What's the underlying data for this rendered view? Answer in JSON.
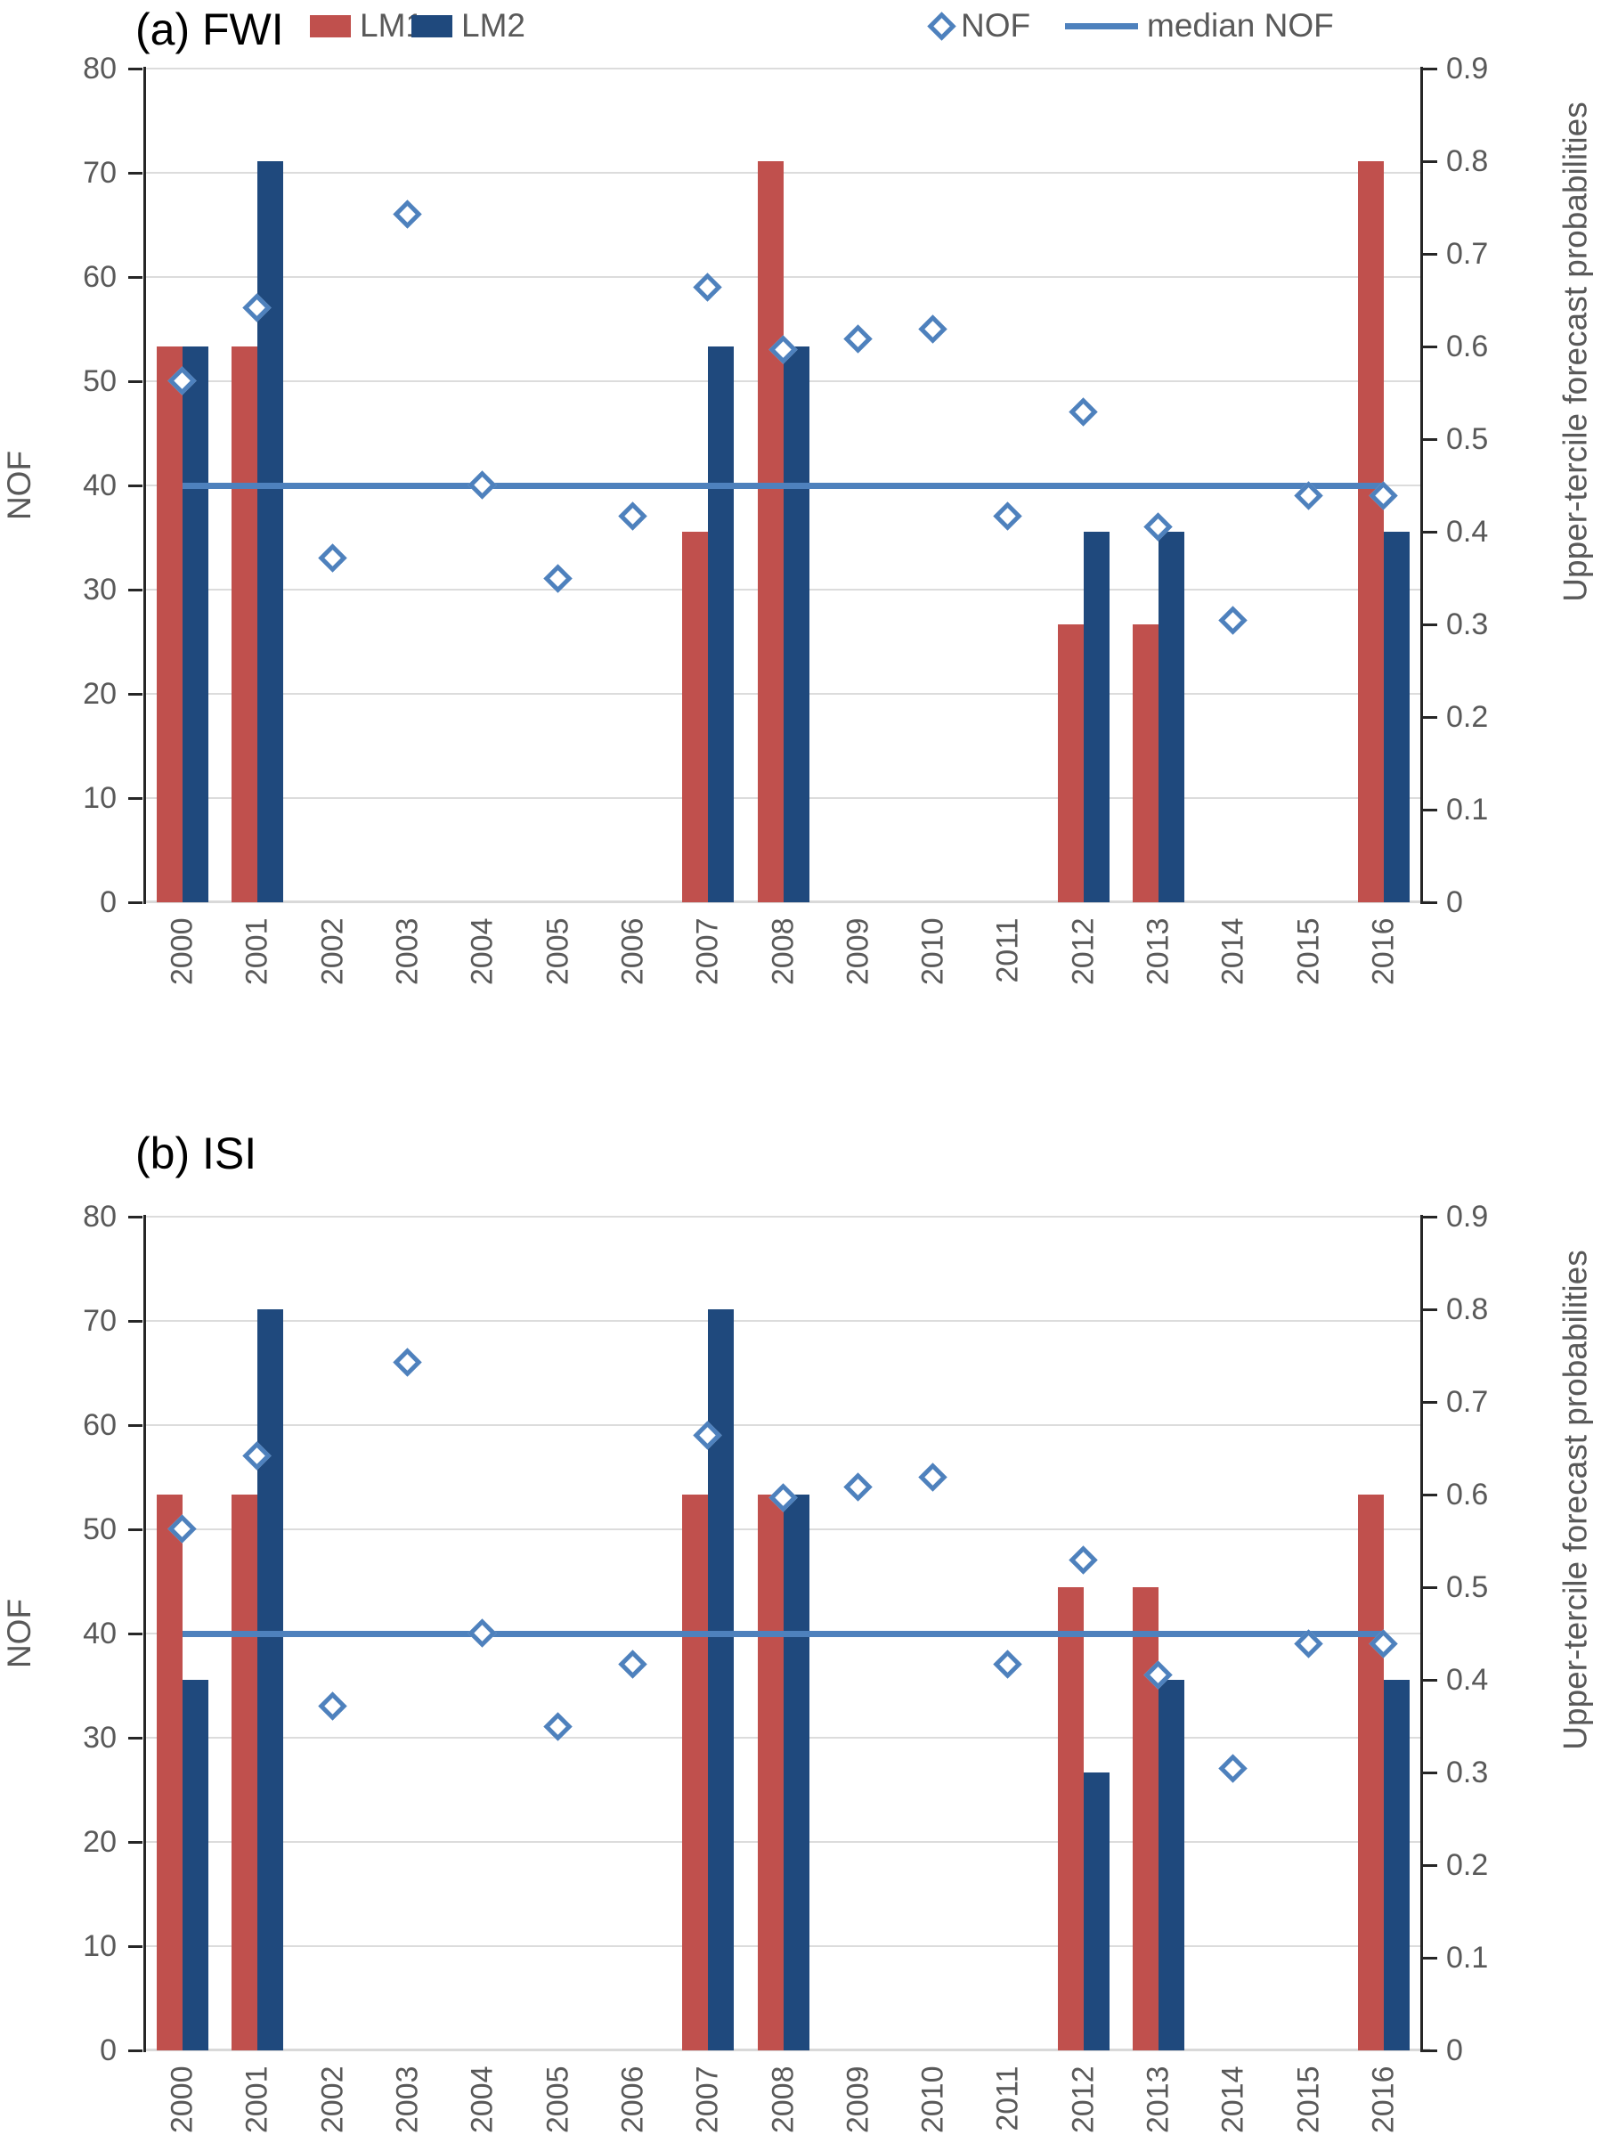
{
  "legend": {
    "items": [
      {
        "label": "LM1",
        "marker": "bar",
        "color": "#C0504D"
      },
      {
        "label": "LM2",
        "marker": "bar",
        "color": "#1F497D"
      },
      {
        "label": "NOF",
        "marker": "diamond",
        "color": "#4E81BD"
      },
      {
        "label": "median NOF",
        "marker": "line",
        "color": "#4E81BD"
      }
    ]
  },
  "colors": {
    "lm1": "#C0504D",
    "lm2": "#1F497D",
    "nof": "#4E81BD",
    "grid": "#DCDCDC",
    "axis": "#262626",
    "tick_text": "#595959",
    "baseline": "#D9D9D9"
  },
  "chart_data": [
    {
      "type": "bar",
      "title": "(a) FWI",
      "categories": [
        "2000",
        "2001",
        "2002",
        "2003",
        "2004",
        "2005",
        "2006",
        "2007",
        "2008",
        "2009",
        "2010",
        "2011",
        "2012",
        "2013",
        "2014",
        "2015",
        "2016"
      ],
      "left_axis": {
        "label": "NOF",
        "min": 0,
        "max": 80,
        "tick_labels": [
          "0",
          "10",
          "20",
          "30",
          "40",
          "50",
          "60",
          "70",
          "80"
        ]
      },
      "right_axis": {
        "label": "Upper-tercile forecast probabilities",
        "min": 0,
        "max": 0.9,
        "tick_labels": [
          "0",
          "0.1",
          "0.2",
          "0.3",
          "0.4",
          "0.5",
          "0.6",
          "0.7",
          "0.8",
          "0.9"
        ]
      },
      "grid": true,
      "legend_position": "top",
      "series": [
        {
          "name": "LM1",
          "type": "bar",
          "axis": "right",
          "color": "#C0504D",
          "values": [
            0.6,
            0.6,
            0,
            0,
            0,
            0,
            0,
            0.4,
            0.8,
            0,
            0,
            0,
            0.3,
            0.3,
            0,
            0,
            0.8
          ]
        },
        {
          "name": "LM2",
          "type": "bar",
          "axis": "right",
          "color": "#1F497D",
          "values": [
            0.6,
            0.8,
            0,
            0,
            0,
            0,
            0,
            0.6,
            0.6,
            0,
            0,
            0,
            0.4,
            0.4,
            0,
            0,
            0.4
          ]
        },
        {
          "name": "NOF",
          "type": "scatter",
          "marker": "diamond",
          "axis": "left",
          "color": "#4E81BD",
          "values": [
            50,
            57,
            33,
            66,
            40,
            31,
            37,
            59,
            53,
            54,
            55,
            37,
            47,
            36,
            27,
            39,
            39
          ]
        },
        {
          "name": "median NOF",
          "type": "line",
          "axis": "left",
          "color": "#4E81BD",
          "value": 40
        }
      ]
    },
    {
      "type": "bar",
      "title": "(b) ISI",
      "categories": [
        "2000",
        "2001",
        "2002",
        "2003",
        "2004",
        "2005",
        "2006",
        "2007",
        "2008",
        "2009",
        "2010",
        "2011",
        "2012",
        "2013",
        "2014",
        "2015",
        "2016"
      ],
      "left_axis": {
        "label": "NOF",
        "min": 0,
        "max": 80,
        "tick_labels": [
          "0",
          "10",
          "20",
          "30",
          "40",
          "50",
          "60",
          "70",
          "80"
        ]
      },
      "right_axis": {
        "label": "Upper-tercile forecast probabilities",
        "min": 0,
        "max": 0.9,
        "tick_labels": [
          "0",
          "0.1",
          "0.2",
          "0.3",
          "0.4",
          "0.5",
          "0.6",
          "0.7",
          "0.8",
          "0.9"
        ]
      },
      "grid": true,
      "legend_position": "none",
      "series": [
        {
          "name": "LM1",
          "type": "bar",
          "axis": "right",
          "color": "#C0504D",
          "values": [
            0.6,
            0.6,
            0,
            0,
            0,
            0,
            0,
            0.6,
            0.6,
            0,
            0,
            0,
            0.5,
            0.5,
            0,
            0,
            0.6
          ]
        },
        {
          "name": "LM2",
          "type": "bar",
          "axis": "right",
          "color": "#1F497D",
          "values": [
            0.4,
            0.8,
            0,
            0,
            0,
            0,
            0,
            0.8,
            0.6,
            0,
            0,
            0,
            0.3,
            0.4,
            0,
            0,
            0.4
          ]
        },
        {
          "name": "NOF",
          "type": "scatter",
          "marker": "diamond",
          "axis": "left",
          "color": "#4E81BD",
          "values": [
            50,
            57,
            33,
            66,
            40,
            31,
            37,
            59,
            53,
            54,
            55,
            37,
            47,
            36,
            27,
            39,
            39
          ]
        },
        {
          "name": "median NOF",
          "type": "line",
          "axis": "left",
          "color": "#4E81BD",
          "value": 40
        }
      ]
    }
  ]
}
